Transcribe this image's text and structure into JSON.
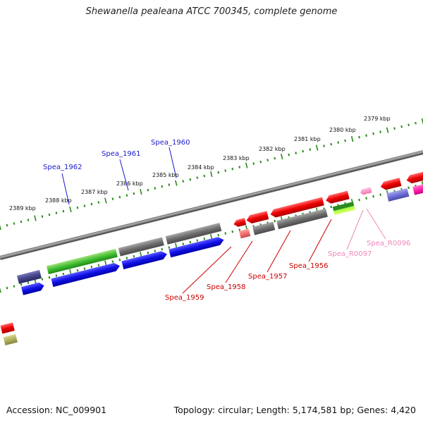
{
  "title": "Shewanella pealeana ATCC 700345, complete genome",
  "footer": {
    "accession_label": "Accession:",
    "accession": "NC_009901",
    "topology_label": "Topology:",
    "topology": "circular",
    "length_label": "Length:",
    "length": "5,174,581 bp",
    "genes_label": "Genes:",
    "genes": "4,420"
  },
  "colors": {
    "backbone": "#8a8a8a",
    "ruler": "#2a8a1a",
    "label_blue": "#1a1acc",
    "label_red": "#cc0000",
    "label_pink": "#ee88bb"
  },
  "ruler_ticks": [
    "2389 kbp",
    "2388 kbp",
    "2387 kbp",
    "2386 kbp",
    "2385 kbp",
    "2384 kbp",
    "2383 kbp",
    "2382 kbp",
    "2381 kbp",
    "2380 kbp",
    "2379 kbp"
  ],
  "gene_labels_top": [
    "Spea_1962",
    "Spea_1961",
    "Spea_1960"
  ],
  "gene_labels_bottom": [
    "Spea_1959",
    "Spea_1958",
    "Spea_1957",
    "Spea_1956",
    "Spea_R0097",
    "Spea_R0096"
  ],
  "icons": [
    "gene-arrow-icon"
  ]
}
